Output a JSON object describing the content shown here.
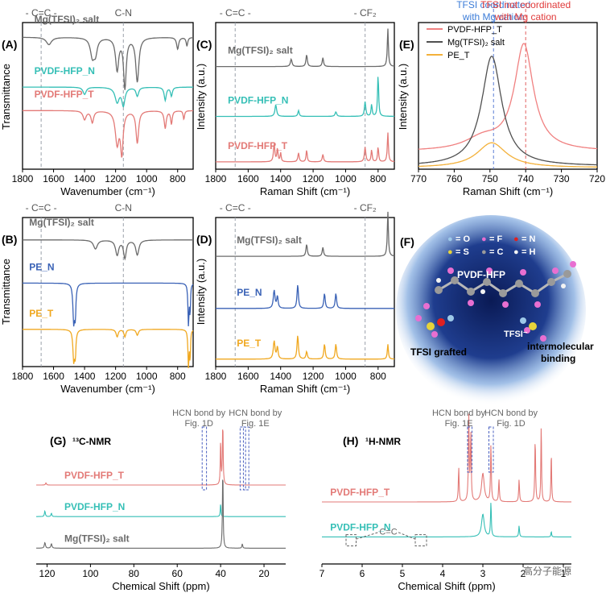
{
  "watermark": "高分子能源",
  "colors": {
    "salt": "#6b6b6b",
    "pvdf_n": "#35bfb6",
    "pvdf_t": "#e37a77",
    "pe_n": "#3a62b6",
    "pe_t": "#f0a820",
    "e_pvdf_t": "#f08080",
    "e_salt": "#505050",
    "e_pe_t": "#f3b13a",
    "dash_gray": "#9aa0aa",
    "dash_blue": "#5b7fd6",
    "dash_red": "#e06060"
  },
  "chart_data": [
    {
      "id": "A",
      "label": "(A)",
      "type": "line",
      "xlabel": "Wavenumber (cm⁻¹)",
      "ylabel": "Transmittance",
      "xlim": [
        1800,
        700
      ],
      "xticks": [
        1800,
        1600,
        1400,
        1200,
        1000,
        800
      ],
      "top_labels": [
        {
          "text": "- C=C -",
          "x": 1680
        },
        {
          "text": "C-N",
          "x": 1150
        }
      ],
      "markers": [
        1680,
        1150
      ],
      "series": [
        {
          "name": "Mg(TFSI)₂ salt",
          "color": "#6b6b6b",
          "baseline": 0.1,
          "peaks": [
            [
              1630,
              20,
              0.05
            ],
            [
              1350,
              15,
              0.12
            ],
            [
              1330,
              14,
              0.1
            ],
            [
              1190,
              12,
              0.22
            ],
            [
              1140,
              10,
              0.34
            ],
            [
              1060,
              12,
              0.3
            ],
            [
              800,
              8,
              0.08
            ],
            [
              740,
              6,
              0.06
            ]
          ]
        },
        {
          "name": "PVDF-HFP_N",
          "color": "#35bfb6",
          "baseline": 0.44,
          "peaks": [
            [
              1400,
              12,
              0.05
            ],
            [
              1190,
              16,
              0.1
            ],
            [
              1150,
              12,
              0.12
            ],
            [
              1060,
              10,
              0.06
            ],
            [
              880,
              8,
              0.09
            ],
            [
              840,
              7,
              0.06
            ]
          ]
        },
        {
          "name": "PVDF-HFP_T",
          "color": "#e37a77",
          "baseline": 0.6,
          "peaks": [
            [
              1400,
              12,
              0.06
            ],
            [
              1350,
              10,
              0.08
            ],
            [
              1190,
              14,
              0.22
            ],
            [
              1160,
              10,
              0.28
            ],
            [
              1060,
              10,
              0.22
            ],
            [
              880,
              8,
              0.12
            ],
            [
              840,
              6,
              0.09
            ],
            [
              760,
              5,
              0.06
            ]
          ]
        }
      ]
    },
    {
      "id": "C",
      "label": "(C)",
      "type": "line",
      "xlabel": "Raman Shift (cm⁻¹)",
      "ylabel": "Intensity (a.u.)",
      "xlim": [
        1800,
        700
      ],
      "xticks": [
        1800,
        1600,
        1400,
        1200,
        1000,
        800
      ],
      "top_labels": [
        {
          "text": "- C=C -",
          "x": 1680
        },
        {
          "text": "- CF₂",
          "x": 880
        }
      ],
      "markers": [
        1680,
        880
      ],
      "series": [
        {
          "name": "Mg(TFSI)₂ salt",
          "color": "#6b6b6b",
          "baseline": 0.3,
          "peaks": [
            [
              1335,
              6,
              0.05
            ],
            [
              1240,
              5,
              0.08
            ],
            [
              1140,
              5,
              0.06
            ],
            [
              740,
              4,
              0.26
            ]
          ]
        },
        {
          "name": "PVDF-HFP_N",
          "color": "#35bfb6",
          "baseline": 0.64,
          "peaks": [
            [
              1430,
              6,
              0.08
            ],
            [
              1290,
              5,
              0.04
            ],
            [
              1060,
              6,
              0.03
            ],
            [
              880,
              5,
              0.1
            ],
            [
              840,
              4,
              0.08
            ],
            [
              800,
              4,
              0.28
            ]
          ]
        },
        {
          "name": "PVDF-HFP_T",
          "color": "#e37a77",
          "baseline": 0.95,
          "peaks": [
            [
              1440,
              5,
              0.12
            ],
            [
              1420,
              4,
              0.09
            ],
            [
              1400,
              4,
              0.06
            ],
            [
              1290,
              5,
              0.06
            ],
            [
              1240,
              4,
              0.08
            ],
            [
              1140,
              5,
              0.05
            ],
            [
              880,
              5,
              0.1
            ],
            [
              840,
              4,
              0.08
            ],
            [
              800,
              4,
              0.1
            ],
            [
              740,
              4,
              0.2
            ]
          ]
        }
      ]
    },
    {
      "id": "E",
      "label": "(E)",
      "type": "line",
      "xlabel": "Raman Shift (cm⁻¹)",
      "ylabel": "Intensity (a.u.)",
      "xlim": [
        770,
        720
      ],
      "xticks": [
        770,
        760,
        750,
        740,
        730,
        720
      ],
      "top_labels": [
        {
          "text": "TFSI coordinated",
          "x": 749,
          "color": "#3d7dd8",
          "row": 0
        },
        {
          "text": "with Mg cation",
          "x": 749,
          "color": "#3d7dd8",
          "row": 1
        },
        {
          "text": "TFSI not coordinated",
          "x": 740,
          "color": "#e03a3a",
          "row": 0
        },
        {
          "text": "with Mg cation",
          "x": 740,
          "color": "#e03a3a",
          "row": 1
        }
      ],
      "marker_styles": [
        {
          "x": 749,
          "color": "#5b7fd6"
        },
        {
          "x": 740,
          "color": "#e06060"
        }
      ],
      "legend": [
        "PVDF-HFP_T",
        "Mg(TFSI)₂ salt",
        "PE_T"
      ],
      "series": [
        {
          "name": "PVDF-HFP_T",
          "color": "#f08080",
          "baseline": 0.12,
          "peaks": [
            [
              740.5,
              3.2,
              0.72
            ],
            [
              752,
              6,
              0.08
            ]
          ]
        },
        {
          "name": "Mg(TFSI)₂ salt",
          "color": "#505050",
          "baseline": 0.02,
          "peaks": [
            [
              749.5,
              3.4,
              0.75
            ]
          ]
        },
        {
          "name": "PE_T",
          "color": "#f3b13a",
          "baseline": 0.01,
          "peaks": [
            [
              749.5,
              5,
              0.17
            ]
          ]
        }
      ]
    },
    {
      "id": "B",
      "label": "(B)",
      "type": "line",
      "xlabel": "Wavenumber (cm⁻¹)",
      "ylabel": "Transmittance",
      "xlim": [
        1800,
        700
      ],
      "xticks": [
        1800,
        1600,
        1400,
        1200,
        1000,
        800
      ],
      "top_labels": [
        {
          "text": "- C=C -",
          "x": 1680
        },
        {
          "text": "C-N",
          "x": 1150
        }
      ],
      "markers": [
        1680,
        1150
      ],
      "series": [
        {
          "name": "Mg(TFSI)₂ salt",
          "color": "#6b6b6b",
          "baseline": 0.15,
          "peaks": [
            [
              1330,
              15,
              0.06
            ],
            [
              1190,
              12,
              0.1
            ],
            [
              1140,
              10,
              0.12
            ],
            [
              1060,
              12,
              0.1
            ]
          ]
        },
        {
          "name": "PE_N",
          "color": "#3a62b6",
          "baseline": 0.44,
          "peaks": [
            [
              1470,
              6,
              0.25
            ],
            [
              1460,
              5,
              0.2
            ],
            [
              730,
              4,
              0.28
            ],
            [
              720,
              3,
              0.2
            ]
          ]
        },
        {
          "name": "PE_T",
          "color": "#f0a820",
          "baseline": 0.75,
          "peaks": [
            [
              1470,
              6,
              0.2
            ],
            [
              1460,
              5,
              0.16
            ],
            [
              1190,
              8,
              0.05
            ],
            [
              1140,
              7,
              0.05
            ],
            [
              1060,
              8,
              0.04
            ],
            [
              730,
              4,
              0.25
            ],
            [
              720,
              3,
              0.2
            ]
          ]
        }
      ]
    },
    {
      "id": "D",
      "label": "(D)",
      "type": "line",
      "xlabel": "Raman Shift (cm⁻¹)",
      "ylabel": "Intensity (a.u.)",
      "xlim": [
        1800,
        700
      ],
      "xticks": [
        1800,
        1600,
        1400,
        1200,
        1000,
        800
      ],
      "top_labels": [
        {
          "text": "- C=C -",
          "x": 1680
        },
        {
          "text": "- CF₂",
          "x": 880
        }
      ],
      "markers": [
        1680,
        880
      ],
      "series": [
        {
          "name": "Mg(TFSI)₂ salt",
          "color": "#6b6b6b",
          "baseline": 0.26,
          "peaks": [
            [
              1240,
              5,
              0.08
            ],
            [
              1140,
              5,
              0.06
            ],
            [
              740,
              4,
              0.3
            ]
          ]
        },
        {
          "name": "PE_N",
          "color": "#3a62b6",
          "baseline": 0.61,
          "peaks": [
            [
              1440,
              6,
              0.12
            ],
            [
              1420,
              5,
              0.08
            ],
            [
              1295,
              5,
              0.16
            ],
            [
              1130,
              5,
              0.1
            ],
            [
              1060,
              5,
              0.1
            ]
          ]
        },
        {
          "name": "PE_T",
          "color": "#f0a820",
          "baseline": 0.95,
          "peaks": [
            [
              1440,
              6,
              0.12
            ],
            [
              1420,
              5,
              0.08
            ],
            [
              1295,
              5,
              0.16
            ],
            [
              1240,
              5,
              0.05
            ],
            [
              1130,
              5,
              0.1
            ],
            [
              1060,
              5,
              0.1
            ],
            [
              740,
              4,
              0.1
            ]
          ]
        }
      ]
    },
    {
      "id": "G",
      "label": "(G)",
      "type": "line",
      "title": "¹³C-NMR",
      "xlabel": "Chemical Shift (ppm)",
      "xlim": [
        125,
        10
      ],
      "xticks": [
        120,
        100,
        80,
        60,
        40,
        20
      ],
      "annotations": [
        {
          "row": 0,
          "text": "HCN bond by",
          "x": 50
        },
        {
          "row": 1,
          "text": "Fig. 1D",
          "x": 50
        },
        {
          "row": 0,
          "text": "HCN bond by",
          "x": 24
        },
        {
          "row": 1,
          "text": "Fig. 1E",
          "x": 24
        }
      ],
      "hcn_boxes": [
        [
          48.5,
          46.5
        ],
        [
          31,
          28.5
        ],
        [
          29.5,
          27
        ]
      ],
      "series": [
        {
          "name": "PVDF-HFP_T",
          "color": "#e37a77",
          "baseline": 0.3,
          "peaks": [
            [
              120.5,
              0.25,
              0.02
            ],
            [
              40,
              0.18,
              0.4
            ],
            [
              39,
              0.2,
              0.55
            ]
          ]
        },
        {
          "name": "PVDF-HFP_N",
          "color": "#35bfb6",
          "baseline": 0.58,
          "peaks": [
            [
              121,
              0.25,
              0.05
            ],
            [
              118,
              0.25,
              0.03
            ],
            [
              40,
              0.18,
              0.12
            ]
          ]
        },
        {
          "name": "Mg(TFSI)₂ salt",
          "color": "#6b6b6b",
          "baseline": 0.86,
          "peaks": [
            [
              121,
              0.3,
              0.05
            ],
            [
              118,
              0.3,
              0.04
            ],
            [
              39,
              0.2,
              0.7
            ],
            [
              30,
              0.2,
              0.04
            ]
          ]
        }
      ]
    },
    {
      "id": "H",
      "label": "(H)",
      "type": "line",
      "title": "¹H-NMR",
      "xlabel": "Chemical Shift (ppm)",
      "xlim": [
        7,
        0.8
      ],
      "xticks": [
        7,
        6,
        5,
        4,
        3,
        2,
        1
      ],
      "annotations": [
        {
          "row": 0,
          "text": "HCN bond by",
          "x": 3.6
        },
        {
          "row": 1,
          "text": "Fig. 1E",
          "x": 3.6
        },
        {
          "row": 0,
          "text": "HCN bond by",
          "x": 2.3
        },
        {
          "row": 1,
          "text": "Fig. 1D",
          "x": 2.3
        },
        {
          "row": 2,
          "text": "C=C",
          "x": 5.35
        }
      ],
      "hcn_boxes": [
        [
          3.38,
          3.27
        ],
        [
          2.85,
          2.74
        ]
      ],
      "cc_boxes": [
        [
          6.4,
          6.15
        ],
        [
          4.68,
          4.4
        ]
      ],
      "series": [
        {
          "name": "PVDF-HFP_T",
          "color": "#e37a77",
          "baseline": 0.45,
          "peaks": [
            [
              3.6,
              0.012,
              0.3
            ],
            [
              3.35,
              0.012,
              0.75
            ],
            [
              3.3,
              0.012,
              0.6
            ],
            [
              3.0,
              0.04,
              0.25
            ],
            [
              2.8,
              0.012,
              0.5
            ],
            [
              2.6,
              0.012,
              0.2
            ],
            [
              2.1,
              0.012,
              0.2
            ],
            [
              1.7,
              0.012,
              0.55
            ],
            [
              1.55,
              0.01,
              0.7
            ],
            [
              1.3,
              0.01,
              0.45
            ]
          ]
        },
        {
          "name": "PVDF-HFP_N",
          "color": "#35bfb6",
          "baseline": 0.76,
          "peaks": [
            [
              3.0,
              0.04,
              0.2
            ],
            [
              2.8,
              0.012,
              0.3
            ],
            [
              2.1,
              0.012,
              0.1
            ],
            [
              1.3,
              0.01,
              0.05
            ]
          ]
        }
      ]
    }
  ],
  "panel_f": {
    "label": "(F)",
    "legend": [
      {
        "symbol": "●",
        "text": "= O",
        "color": "#9ec9e8"
      },
      {
        "symbol": "●",
        "text": "= F",
        "color": "#e86fd1"
      },
      {
        "symbol": "●",
        "text": "= N",
        "color": "#e02020"
      },
      {
        "symbol": "●",
        "text": "= S",
        "color": "#e6d33a"
      },
      {
        "symbol": "●",
        "text": "= C",
        "color": "#9a9a9a"
      },
      {
        "symbol": "●",
        "text": "= H",
        "color": "#f3f3f3"
      }
    ],
    "texts": {
      "polymer": "PVDF-HFP",
      "tfsi": "TFSI⁻",
      "grafted": "TFSI grafted",
      "binding1": "intermolecular",
      "binding2": "binding"
    }
  }
}
